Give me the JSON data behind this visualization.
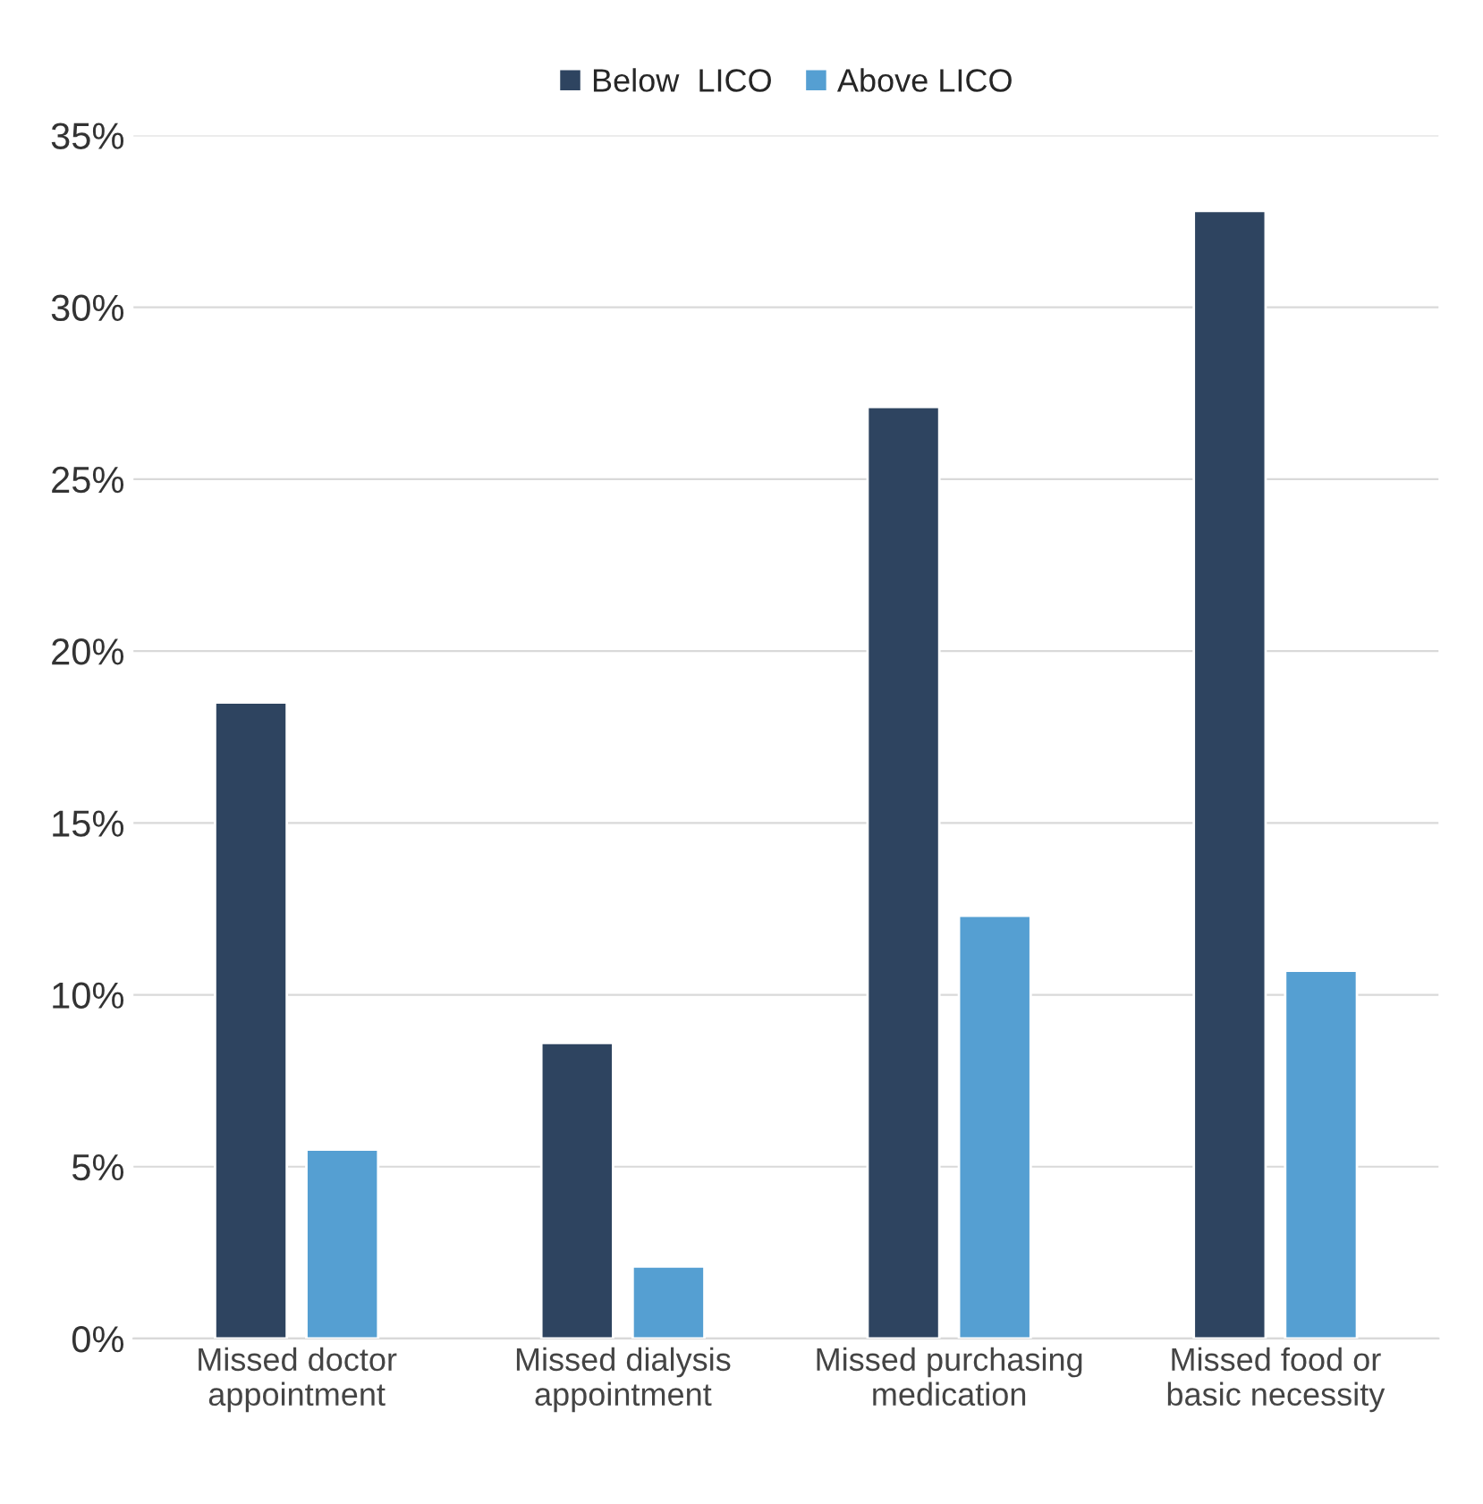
{
  "chart_data": {
    "type": "bar",
    "categories": [
      "Missed doctor appointment",
      "Missed dialysis appointment",
      "Missed purchasing medication",
      "Missed food or basic necessity"
    ],
    "series": [
      {
        "name": "Below  LICO",
        "color": "#2e4460",
        "values": [
          18.5,
          8.6,
          27.1,
          32.8
        ]
      },
      {
        "name": "Above LICO",
        "color": "#559fd2",
        "values": [
          5.5,
          2.1,
          12.3,
          10.7
        ]
      }
    ],
    "ylim": [
      0,
      35
    ],
    "yticks": [
      {
        "value": 0,
        "label": "0%"
      },
      {
        "value": 5,
        "label": "5%"
      },
      {
        "value": 10,
        "label": "10%"
      },
      {
        "value": 15,
        "label": "15%"
      },
      {
        "value": 20,
        "label": "20%"
      },
      {
        "value": 25,
        "label": "25%"
      },
      {
        "value": 30,
        "label": "30%"
      },
      {
        "value": 35,
        "label": "35%"
      }
    ],
    "grid": "y",
    "legend": "top"
  }
}
